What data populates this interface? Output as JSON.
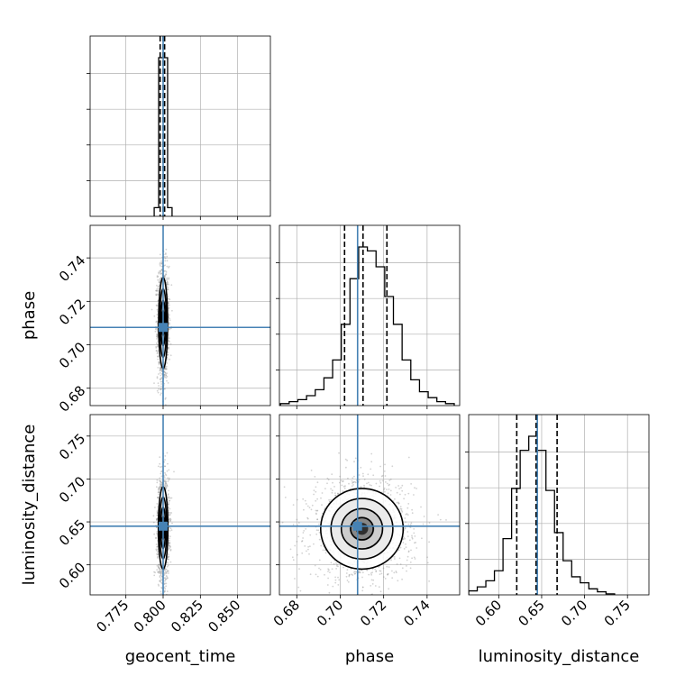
{
  "chart_data": {
    "type": "corner",
    "parameters": [
      "geocent_time",
      "phase",
      "luminosity_distance"
    ],
    "truths": {
      "geocent_time": 0.8,
      "phase": 0.708,
      "luminosity_distance": 0.645
    },
    "colors": {
      "truth": "#4682b4",
      "hist": "#000000",
      "grid": "#b0b0b0",
      "points": "#808080"
    },
    "grid": true,
    "axes": {
      "geocent_time": {
        "range": [
          0.751,
          0.872
        ],
        "ticks": [
          0.775,
          0.8,
          0.825,
          0.85
        ],
        "tick_labels": [
          "0.775",
          "0.800",
          "0.825",
          "0.850"
        ]
      },
      "phase": {
        "range": [
          0.672,
          0.755
        ],
        "ticks": [
          0.68,
          0.7,
          0.72,
          0.74
        ],
        "tick_labels": [
          "0.68",
          "0.70",
          "0.72",
          "0.74"
        ]
      },
      "luminosity_distance": {
        "range": [
          0.565,
          0.775
        ],
        "ticks": [
          0.6,
          0.65,
          0.7,
          0.75
        ],
        "tick_labels": [
          "0.60",
          "0.65",
          "0.70",
          "0.75"
        ]
      }
    },
    "marginals": {
      "geocent_time": {
        "bin_edges": [
          0.794,
          0.797,
          0.803,
          0.806
        ],
        "counts": [
          0.045,
          0.82,
          0.045
        ],
        "quantiles": [
          0.798,
          0.8,
          0.801
        ]
      },
      "phase": {
        "bin_edges": [
          0.6725,
          0.6765,
          0.6805,
          0.6845,
          0.6885,
          0.6925,
          0.6965,
          0.7005,
          0.7045,
          0.7085,
          0.7125,
          0.7165,
          0.7205,
          0.7245,
          0.7285,
          0.7325,
          0.7365,
          0.7405,
          0.7445,
          0.7485,
          0.7525
        ],
        "counts": [
          0.01,
          0.02,
          0.03,
          0.05,
          0.08,
          0.14,
          0.23,
          0.41,
          0.64,
          0.8,
          0.78,
          0.7,
          0.55,
          0.41,
          0.23,
          0.13,
          0.07,
          0.04,
          0.02,
          0.01
        ],
        "quantiles": [
          0.702,
          0.7105,
          0.7215
        ]
      },
      "luminosity_distance": {
        "bin_edges": [
          0.565,
          0.575,
          0.585,
          0.595,
          0.605,
          0.615,
          0.625,
          0.635,
          0.645,
          0.655,
          0.665,
          0.675,
          0.685,
          0.695,
          0.705,
          0.715,
          0.725,
          0.735
        ],
        "counts": [
          0.02,
          0.04,
          0.07,
          0.12,
          0.28,
          0.53,
          0.72,
          0.79,
          0.72,
          0.52,
          0.31,
          0.17,
          0.09,
          0.06,
          0.03,
          0.015,
          0.005
        ],
        "quantiles": [
          0.621,
          0.6435,
          0.668
        ]
      }
    },
    "joint": [
      {
        "x": "geocent_time",
        "y": "phase",
        "cx": 0.8,
        "cy": 0.71,
        "sx": 0.0015,
        "sy": 0.0105
      },
      {
        "x": "geocent_time",
        "y": "luminosity_distance",
        "cx": 0.8,
        "cy": 0.643,
        "sx": 0.0016,
        "sy": 0.024
      },
      {
        "x": "phase",
        "y": "luminosity_distance",
        "cx": 0.71,
        "cy": 0.642,
        "sx": 0.0095,
        "sy": 0.0235
      }
    ]
  }
}
